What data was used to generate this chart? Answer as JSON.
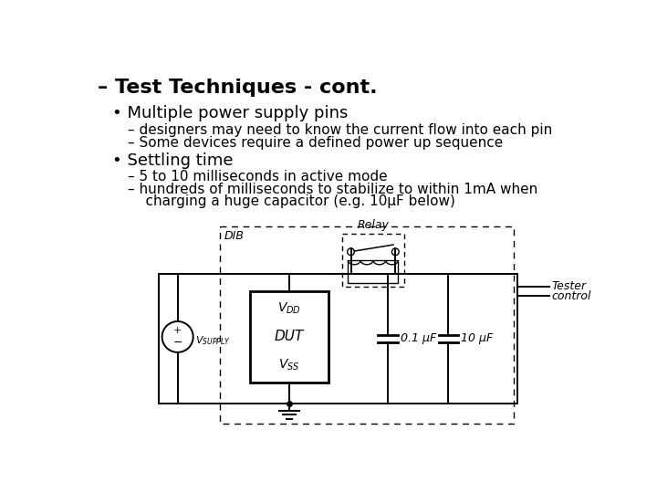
{
  "title": "– Test Techniques - cont.",
  "bullet1": "• Multiple power supply pins",
  "sub1a": "– designers may need to know the current flow into each pin",
  "sub1b": "– Some devices require a defined power up sequence",
  "bullet2": "• Settling time",
  "sub2a": "– 5 to 10 milliseconds in active mode",
  "sub2b": "– hundreds of milliseconds to stabilize to within 1mA when",
  "sub2b2": "    charging a huge capacitor (e.g. 10μF below)",
  "bg_color": "#ffffff",
  "text_color": "#000000",
  "diagram_dib_label": "DIB",
  "diagram_relay_label": "Relay",
  "diagram_c1": "0.1 μF",
  "diagram_c2": "10 μF",
  "diagram_tester": "Tester",
  "diagram_control": "control"
}
